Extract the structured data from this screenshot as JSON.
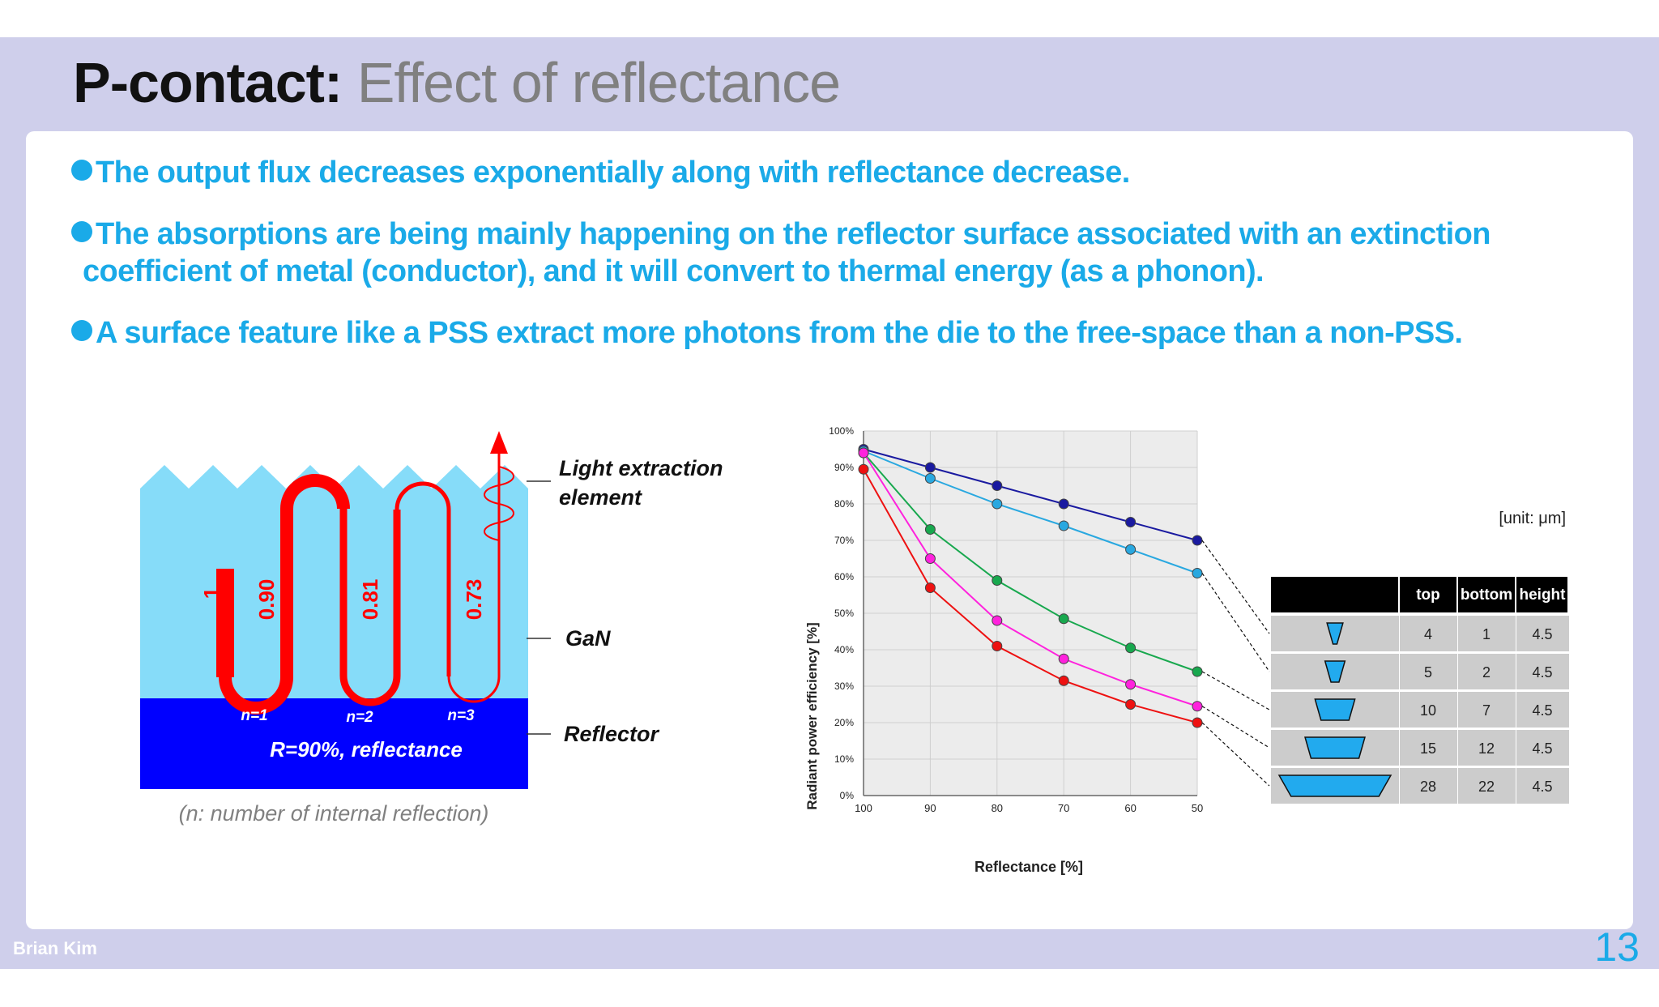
{
  "header": {
    "title_bold": "P-contact:",
    "title_rest": "Effect of reflectance"
  },
  "bullets": [
    {
      "line1": "The output flux decreases exponentially along with reflectance decrease."
    },
    {
      "line1": "The absorptions are being mainly happening on the reflector surface associated with an extinction",
      "line2": "coefficient of metal (conductor), and it will convert to thermal energy (as a phonon)."
    },
    {
      "line1": "A surface feature like a PSS extract more photons from the die to the free-space than a non-PSS."
    }
  ],
  "diagram": {
    "intensities": [
      "1",
      "0.90",
      "0.81",
      "0.73"
    ],
    "reflections": [
      "n=1",
      "n=2",
      "n=3"
    ],
    "reflector_text": "R=90%, reflectance",
    "caption": "(n: number of internal reflection)",
    "label_light_1": "Light extraction",
    "label_light_2": "element",
    "label_gan": "GaN",
    "label_reflector": "Reflector",
    "colors": {
      "gan": "#86dcf9",
      "reflector": "#0000ff",
      "ray": "#ff0000"
    }
  },
  "chart_data": {
    "type": "line",
    "xlabel": "Reflectance [%]",
    "ylabel": "Radiant power efficiency [%]",
    "x": [
      100,
      90,
      80,
      70,
      60,
      50
    ],
    "x_tick_labels": [
      "100",
      "90",
      "80",
      "70",
      "60",
      "50"
    ],
    "y_tick_labels": [
      "0%",
      "10%",
      "20%",
      "30%",
      "40%",
      "50%",
      "60%",
      "70%",
      "80%",
      "90%",
      "100%"
    ],
    "xlim": [
      100,
      50
    ],
    "ylim": [
      0,
      100
    ],
    "grid": true,
    "series": [
      {
        "color": "#1a1aa0",
        "values": [
          95,
          90,
          85,
          80,
          75,
          70
        ]
      },
      {
        "color": "#29a8e0",
        "values": [
          94.5,
          87,
          80,
          74,
          67.5,
          61
        ]
      },
      {
        "color": "#18a84e",
        "values": [
          94,
          73,
          59,
          48.5,
          40.5,
          34
        ]
      },
      {
        "color": "#ff22dd",
        "values": [
          94,
          65,
          48,
          37.5,
          30.5,
          24.5
        ]
      },
      {
        "color": "#ee1111",
        "values": [
          89.5,
          57,
          41,
          31.5,
          25,
          20
        ]
      }
    ]
  },
  "table": {
    "unit": "[unit: μm]",
    "headers": [
      "",
      "top",
      "bottom",
      "height"
    ],
    "rows": [
      {
        "top": "4",
        "bottom": "1",
        "height": "4.5",
        "w_top": 4,
        "w_bottom": 1
      },
      {
        "top": "5",
        "bottom": "2",
        "height": "4.5",
        "w_top": 5,
        "w_bottom": 2
      },
      {
        "top": "10",
        "bottom": "7",
        "height": "4.5",
        "w_top": 10,
        "w_bottom": 7
      },
      {
        "top": "15",
        "bottom": "12",
        "height": "4.5",
        "w_top": 15,
        "w_bottom": 12
      },
      {
        "top": "28",
        "bottom": "22",
        "height": "4.5",
        "w_top": 28,
        "w_bottom": 22
      }
    ]
  },
  "footer": {
    "author": "Brian Kim",
    "page": "13"
  }
}
